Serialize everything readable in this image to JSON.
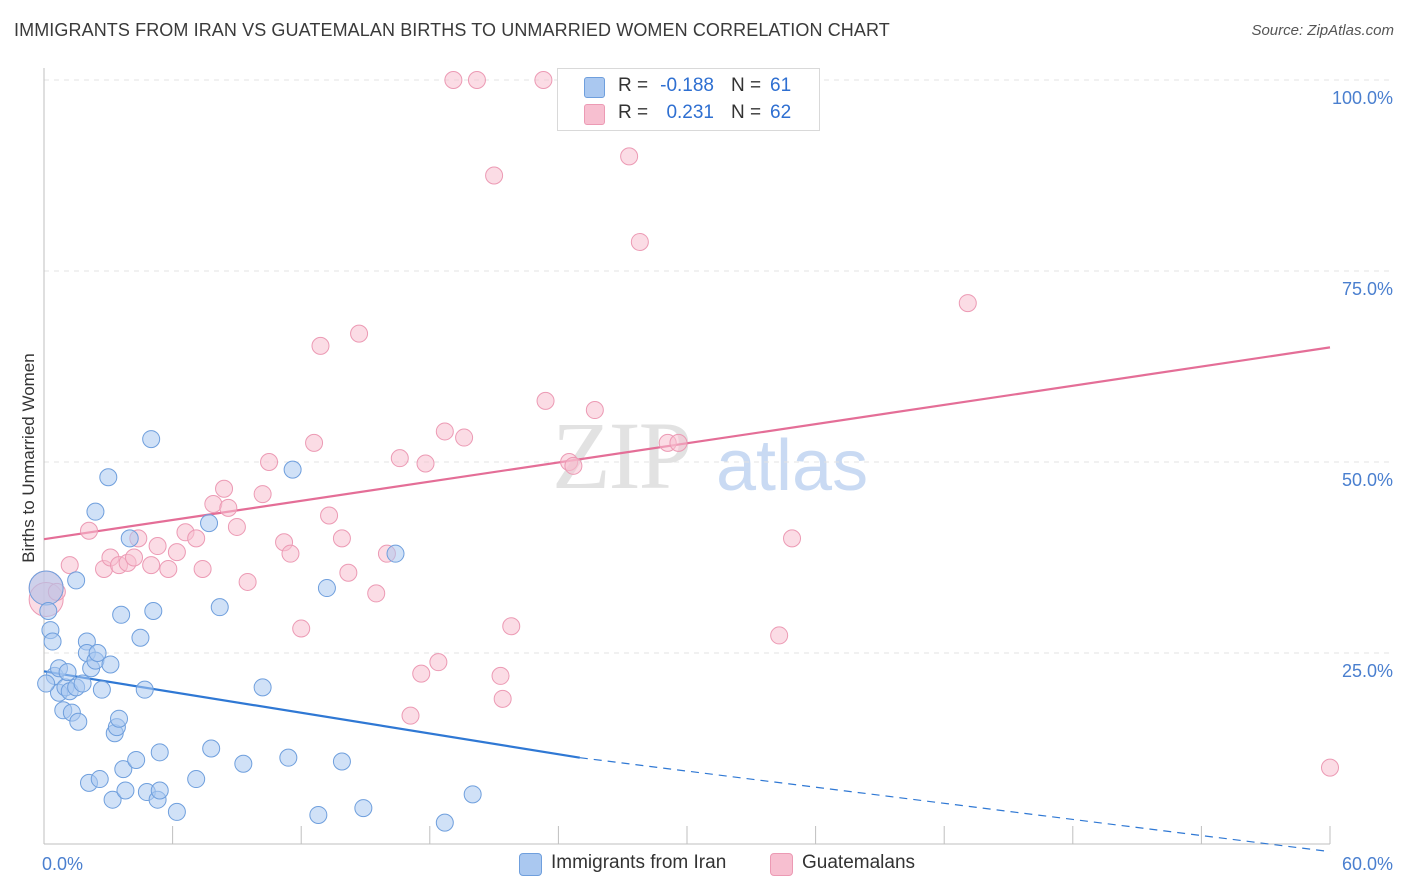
{
  "title": "IMMIGRANTS FROM IRAN VS GUATEMALAN BIRTHS TO UNMARRIED WOMEN CORRELATION CHART",
  "source": "Source: ZipAtlas.com",
  "watermark": {
    "zip": "ZIP",
    "atlas": "atlas"
  },
  "legend_top": [
    {
      "r_label": "R =",
      "r_value": "-0.188",
      "n_label": "N =",
      "n_value": "61",
      "color": "#aac8f0"
    },
    {
      "r_label": "R =",
      "r_value": "0.231",
      "n_label": "N =",
      "n_value": "62",
      "color": "#f7bfd0"
    }
  ],
  "legend_bottom": [
    {
      "label": "Immigrants from Iran",
      "color": "#aac8f0"
    },
    {
      "label": "Guatemalans",
      "color": "#f7bfd0"
    }
  ],
  "colors": {
    "blue_fill": "#aac8f0",
    "blue_stroke": "#6f9fdd",
    "blue_line": "#2f78d4",
    "pink_fill": "#f7bfd0",
    "pink_stroke": "#ec9ab4",
    "pink_line": "#e46e97",
    "grid": "#e3e3e3",
    "tick_text": "#4a7fcf"
  },
  "chart_data": {
    "type": "scatter",
    "title": "IMMIGRANTS FROM IRAN VS GUATEMALAN BIRTHS TO UNMARRIED WOMEN CORRELATION CHART",
    "xlabel": "",
    "ylabel": "Births to Unmarried Women",
    "xlim": [
      0,
      60
    ],
    "ylim": [
      0,
      100
    ],
    "x_tick_labels": [
      "0.0%",
      "60.0%"
    ],
    "y_tick_labels": [
      "25.0%",
      "50.0%",
      "75.0%",
      "100.0%"
    ],
    "y_ticks": [
      25,
      50,
      75,
      100
    ],
    "legend": "top-center",
    "grid": true,
    "series": [
      {
        "name": "Immigrants from Iran",
        "trend": {
          "x": [
            0,
            25
          ],
          "y": [
            22.6,
            11.3
          ],
          "dashed_to": [
            60,
            -1
          ]
        },
        "points": [
          [
            0.1,
            33.5
          ],
          [
            0.3,
            28.0
          ],
          [
            0.4,
            26.5
          ],
          [
            0.5,
            22.0
          ],
          [
            0.7,
            23.0
          ],
          [
            0.7,
            19.8
          ],
          [
            0.9,
            17.5
          ],
          [
            1.0,
            20.5
          ],
          [
            1.2,
            20.0
          ],
          [
            1.3,
            17.2
          ],
          [
            1.5,
            34.5
          ],
          [
            1.5,
            20.5
          ],
          [
            1.6,
            16.0
          ],
          [
            1.8,
            21.0
          ],
          [
            2.0,
            26.5
          ],
          [
            2.0,
            25.0
          ],
          [
            2.1,
            8.0
          ],
          [
            2.2,
            23.0
          ],
          [
            2.4,
            43.5
          ],
          [
            2.4,
            24.0
          ],
          [
            2.5,
            25.0
          ],
          [
            2.6,
            8.5
          ],
          [
            2.7,
            20.2
          ],
          [
            3.0,
            48.0
          ],
          [
            3.1,
            23.5
          ],
          [
            3.2,
            5.8
          ],
          [
            3.3,
            14.5
          ],
          [
            3.4,
            15.3
          ],
          [
            3.5,
            16.4
          ],
          [
            3.6,
            30.0
          ],
          [
            3.7,
            9.8
          ],
          [
            3.8,
            7.0
          ],
          [
            4.0,
            40.0
          ],
          [
            4.3,
            11.0
          ],
          [
            4.5,
            27.0
          ],
          [
            4.7,
            20.2
          ],
          [
            4.8,
            6.8
          ],
          [
            5.0,
            53.0
          ],
          [
            5.1,
            30.5
          ],
          [
            5.3,
            5.8
          ],
          [
            5.4,
            12.0
          ],
          [
            5.4,
            7.0
          ],
          [
            6.2,
            4.2
          ],
          [
            7.1,
            8.5
          ],
          [
            7.7,
            42.0
          ],
          [
            7.8,
            12.5
          ],
          [
            8.2,
            31.0
          ],
          [
            9.3,
            10.5
          ],
          [
            10.2,
            20.5
          ],
          [
            11.4,
            11.3
          ],
          [
            11.6,
            49.0
          ],
          [
            12.8,
            3.8
          ],
          [
            13.2,
            33.5
          ],
          [
            13.9,
            10.8
          ],
          [
            14.9,
            4.7
          ],
          [
            16.4,
            38.0
          ],
          [
            18.7,
            2.8
          ],
          [
            20.0,
            6.5
          ],
          [
            0.1,
            21.0
          ],
          [
            0.2,
            30.5
          ],
          [
            1.1,
            22.5
          ]
        ]
      },
      {
        "name": "Guatemalans",
        "trend": {
          "x": [
            0,
            60
          ],
          "y": [
            39.9,
            65.0
          ]
        },
        "points": [
          [
            0.1,
            33.5
          ],
          [
            0.1,
            32.0
          ],
          [
            0.6,
            33.0
          ],
          [
            1.2,
            36.5
          ],
          [
            2.1,
            41.0
          ],
          [
            2.8,
            36.0
          ],
          [
            3.1,
            37.5
          ],
          [
            3.5,
            36.5
          ],
          [
            3.9,
            36.8
          ],
          [
            4.2,
            37.5
          ],
          [
            4.4,
            40.0
          ],
          [
            5.0,
            36.5
          ],
          [
            5.3,
            39.0
          ],
          [
            5.8,
            36.0
          ],
          [
            6.2,
            38.2
          ],
          [
            6.6,
            40.8
          ],
          [
            7.1,
            40.0
          ],
          [
            7.4,
            36.0
          ],
          [
            7.9,
            44.5
          ],
          [
            8.4,
            46.5
          ],
          [
            8.6,
            44.0
          ],
          [
            9.0,
            41.5
          ],
          [
            9.5,
            34.3
          ],
          [
            10.2,
            45.8
          ],
          [
            10.5,
            50.0
          ],
          [
            11.2,
            39.5
          ],
          [
            11.5,
            38.0
          ],
          [
            12.0,
            28.2
          ],
          [
            12.6,
            52.5
          ],
          [
            12.9,
            65.2
          ],
          [
            13.3,
            43.0
          ],
          [
            13.9,
            40.0
          ],
          [
            14.2,
            35.5
          ],
          [
            14.7,
            66.8
          ],
          [
            15.5,
            32.8
          ],
          [
            16.0,
            38.0
          ],
          [
            16.6,
            50.5
          ],
          [
            17.1,
            16.8
          ],
          [
            17.6,
            22.3
          ],
          [
            17.8,
            49.8
          ],
          [
            18.4,
            23.8
          ],
          [
            18.7,
            54.0
          ],
          [
            19.1,
            100.0
          ],
          [
            19.6,
            53.2
          ],
          [
            20.2,
            100.0
          ],
          [
            21.0,
            87.5
          ],
          [
            21.3,
            22.0
          ],
          [
            21.4,
            19.0
          ],
          [
            21.8,
            28.5
          ],
          [
            23.3,
            100.0
          ],
          [
            23.4,
            58.0
          ],
          [
            24.5,
            50.0
          ],
          [
            24.7,
            49.5
          ],
          [
            25.7,
            56.8
          ],
          [
            27.3,
            90.0
          ],
          [
            27.8,
            78.8
          ],
          [
            29.1,
            52.5
          ],
          [
            29.6,
            52.5
          ],
          [
            34.9,
            40.0
          ],
          [
            34.3,
            27.3
          ],
          [
            43.1,
            70.8
          ],
          [
            60.0,
            10.0
          ]
        ]
      }
    ]
  }
}
